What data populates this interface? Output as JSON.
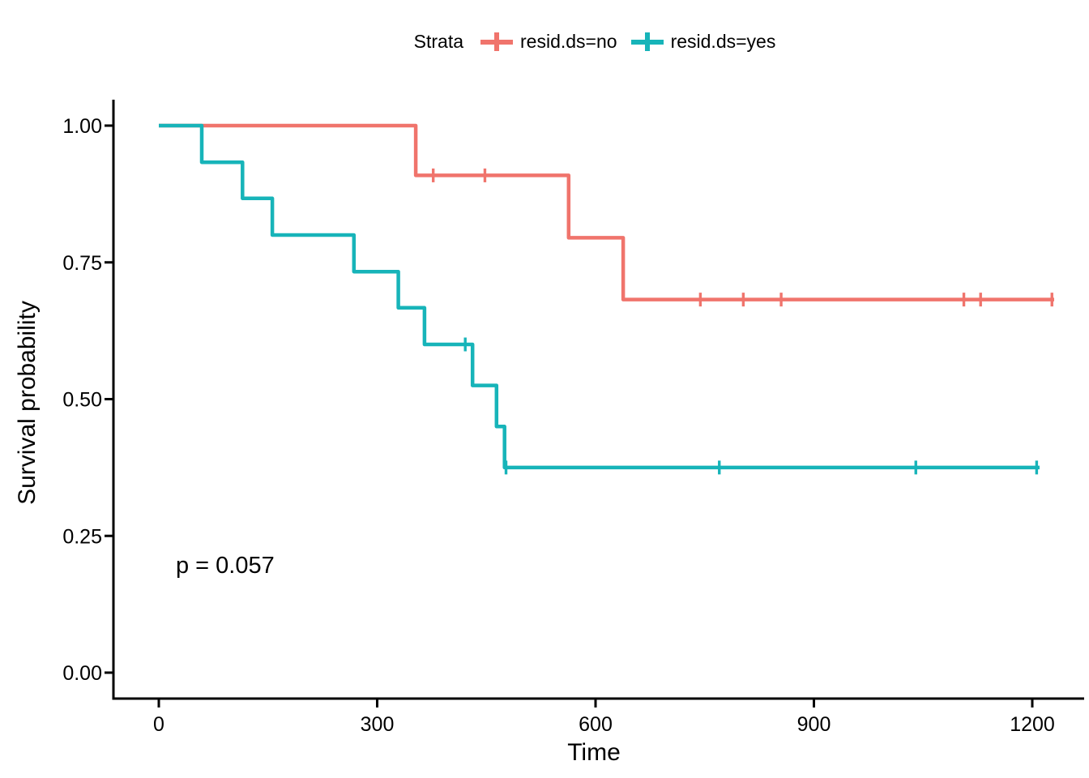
{
  "legend": {
    "title": "Strata",
    "items": [
      {
        "label": "resid.ds=no",
        "color": "#F0746C"
      },
      {
        "label": "resid.ds=yes",
        "color": "#17B4B9"
      }
    ]
  },
  "axes": {
    "x_label": "Time",
    "y_label": "Survival probability"
  },
  "annotation": {
    "p_value": "p = 0.057"
  },
  "chart_data": {
    "type": "line",
    "subtype": "kaplan_meier_step_curve",
    "title": "",
    "xlabel": "Time",
    "ylabel": "Survival probability",
    "xlim": [
      0,
      1270
    ],
    "ylim": [
      0,
      1.0
    ],
    "x_ticks": [
      0,
      300,
      600,
      900,
      1200
    ],
    "y_ticks": [
      0,
      0.25,
      0.5,
      0.75,
      1
    ],
    "grid": false,
    "legend_position": "top",
    "legend_title": "Strata",
    "p_value_annotation": {
      "text": "p = 0.057",
      "x": 25,
      "y": 0.21
    },
    "series": [
      {
        "name": "resid.ds=no",
        "color": "#F0746C",
        "steps": [
          [
            0,
            1.0
          ],
          [
            353,
            1.0
          ],
          [
            353,
            0.909
          ],
          [
            563,
            0.909
          ],
          [
            563,
            0.795
          ],
          [
            638,
            0.795
          ],
          [
            638,
            0.682
          ],
          [
            1230,
            0.682
          ]
        ],
        "censor_marks": [
          [
            377,
            0.909
          ],
          [
            448,
            0.909
          ],
          [
            744,
            0.682
          ],
          [
            803,
            0.682
          ],
          [
            855,
            0.682
          ],
          [
            1106,
            0.682
          ],
          [
            1129,
            0.682
          ],
          [
            1227,
            0.682
          ]
        ]
      },
      {
        "name": "resid.ds=yes",
        "color": "#17B4B9",
        "steps": [
          [
            0,
            1.0
          ],
          [
            59,
            1.0
          ],
          [
            59,
            0.933
          ],
          [
            115,
            0.933
          ],
          [
            115,
            0.867
          ],
          [
            156,
            0.867
          ],
          [
            156,
            0.8
          ],
          [
            268,
            0.8
          ],
          [
            268,
            0.733
          ],
          [
            329,
            0.733
          ],
          [
            329,
            0.667
          ],
          [
            365,
            0.667
          ],
          [
            365,
            0.6
          ],
          [
            431,
            0.6
          ],
          [
            431,
            0.525
          ],
          [
            464,
            0.525
          ],
          [
            464,
            0.45
          ],
          [
            475,
            0.45
          ],
          [
            475,
            0.375
          ],
          [
            1210,
            0.375
          ]
        ],
        "censor_marks": [
          [
            421,
            0.6
          ],
          [
            477,
            0.375
          ],
          [
            770,
            0.375
          ],
          [
            1040,
            0.375
          ],
          [
            1206,
            0.375
          ]
        ]
      }
    ]
  }
}
